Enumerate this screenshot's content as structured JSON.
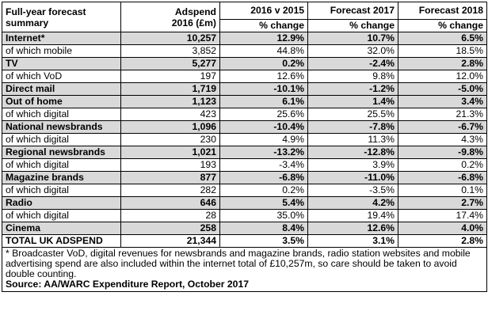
{
  "header": {
    "label_line1": "Full-year forecast",
    "label_line2": "summary",
    "adspend_line1": "Adspend",
    "adspend_line2": "2016 (£m)",
    "col1": "2016 v 2015",
    "col2": "Forecast 2017",
    "col3": "Forecast 2018",
    "sub": "% change"
  },
  "rows": [
    {
      "type": "main",
      "label": "Internet*",
      "adspend": "10,257",
      "v1": "12.9%",
      "v2": "10.7%",
      "v3": "6.5%"
    },
    {
      "type": "sub",
      "label": "of which mobile",
      "adspend": "3,852",
      "v1": "44.8%",
      "v2": "32.0%",
      "v3": "18.5%"
    },
    {
      "type": "main",
      "label": "TV",
      "adspend": "5,277",
      "v1": "0.2%",
      "v2": "-2.4%",
      "v3": "2.8%"
    },
    {
      "type": "sub",
      "label": "of which VoD",
      "adspend": "197",
      "v1": "12.6%",
      "v2": "9.8%",
      "v3": "12.0%"
    },
    {
      "type": "main",
      "label": "Direct mail",
      "adspend": "1,719",
      "v1": "-10.1%",
      "v2": "-1.2%",
      "v3": "-5.0%"
    },
    {
      "type": "main",
      "label": "Out of home",
      "adspend": "1,123",
      "v1": "6.1%",
      "v2": "1.4%",
      "v3": "3.4%"
    },
    {
      "type": "sub",
      "label": "of which digital",
      "adspend": "423",
      "v1": "25.6%",
      "v2": "25.5%",
      "v3": "21.3%"
    },
    {
      "type": "main",
      "label": "National newsbrands",
      "adspend": "1,096",
      "v1": "-10.4%",
      "v2": "-7.8%",
      "v3": "-6.7%"
    },
    {
      "type": "sub",
      "label": "of which digital",
      "adspend": "230",
      "v1": "4.9%",
      "v2": "11.3%",
      "v3": "4.3%"
    },
    {
      "type": "main",
      "label": "Regional newsbrands",
      "adspend": "1,021",
      "v1": "-13.2%",
      "v2": "-12.8%",
      "v3": "-9.8%"
    },
    {
      "type": "sub",
      "label": "of which digital",
      "adspend": "193",
      "v1": "-3.4%",
      "v2": "3.9%",
      "v3": "0.2%"
    },
    {
      "type": "main",
      "label": "Magazine brands",
      "adspend": "877",
      "v1": "-6.8%",
      "v2": "-11.0%",
      "v3": "-6.8%"
    },
    {
      "type": "sub",
      "label": "of which digital",
      "adspend": "282",
      "v1": "0.2%",
      "v2": "-3.5%",
      "v3": "0.1%"
    },
    {
      "type": "main",
      "label": "Radio",
      "adspend": "646",
      "v1": "5.4%",
      "v2": "4.2%",
      "v3": "2.7%"
    },
    {
      "type": "sub",
      "label": "of which digital",
      "adspend": "28",
      "v1": "35.0%",
      "v2": "19.4%",
      "v3": "17.4%"
    },
    {
      "type": "main",
      "label": "Cinema",
      "adspend": "258",
      "v1": "8.4%",
      "v2": "12.6%",
      "v3": "4.0%"
    },
    {
      "type": "total",
      "label": "TOTAL UK ADSPEND",
      "adspend": "21,344",
      "v1": "3.5%",
      "v2": "3.1%",
      "v3": "2.8%"
    }
  ],
  "footnote": "* Broadcaster VoD, digital revenues for newsbrands and magazine brands, radio station websites and mobile advertising spend are also included within the internet total of £10,257m, so care should be taken to avoid double counting.",
  "source": "Source: AA/WARC Expenditure Report, October 2017"
}
